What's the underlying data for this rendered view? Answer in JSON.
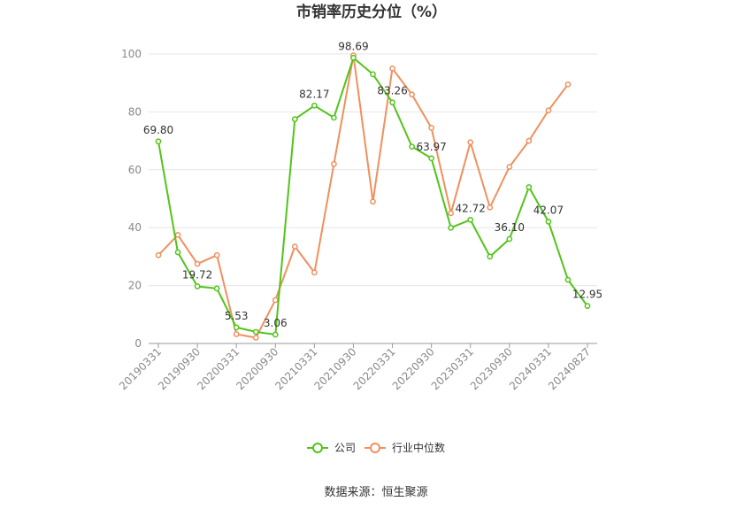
{
  "chart_data": {
    "type": "line",
    "title": "市销率历史分位（%）",
    "source_label": "数据来源：",
    "source_name": "恒生聚源",
    "ylim": [
      0,
      100
    ],
    "yticks": [
      0,
      20,
      40,
      60,
      80,
      100
    ],
    "x_tick_labels": [
      "20190331",
      "20190930",
      "20200331",
      "20200930",
      "20210331",
      "20210930",
      "20220331",
      "20220930",
      "20230331",
      "20230930",
      "20240331",
      "20240827"
    ],
    "grid": true,
    "legend_position": "bottom",
    "series": [
      {
        "name": "公司",
        "color": "#52c41a",
        "values": [
          69.8,
          31.5,
          19.72,
          19.0,
          5.53,
          4.0,
          3.06,
          77.5,
          82.17,
          78.0,
          98.69,
          93.0,
          83.26,
          68.0,
          63.97,
          40.0,
          42.72,
          30.0,
          36.1,
          54.0,
          42.07,
          22.0,
          12.95
        ]
      },
      {
        "name": "行业中位数",
        "color": "#f0905e",
        "values": [
          30.5,
          37.5,
          27.5,
          30.5,
          3.2,
          2.0,
          15.0,
          33.5,
          24.5,
          62.0,
          99.5,
          49.0,
          95.0,
          86.0,
          74.5,
          45.0,
          69.5,
          47.0,
          61.0,
          70.0,
          80.5,
          89.5,
          null
        ]
      }
    ],
    "data_labels": [
      {
        "index": 0,
        "text": "69.80"
      },
      {
        "index": 2,
        "text": "19.72"
      },
      {
        "index": 4,
        "text": "5.53"
      },
      {
        "index": 6,
        "text": "3.06"
      },
      {
        "index": 8,
        "text": "82.17"
      },
      {
        "index": 10,
        "text": "98.69"
      },
      {
        "index": 12,
        "text": "83.26"
      },
      {
        "index": 14,
        "text": "63.97"
      },
      {
        "index": 16,
        "text": "42.72"
      },
      {
        "index": 18,
        "text": "36.10"
      },
      {
        "index": 20,
        "text": "42.07"
      },
      {
        "index": 22,
        "text": "12.95"
      }
    ]
  }
}
